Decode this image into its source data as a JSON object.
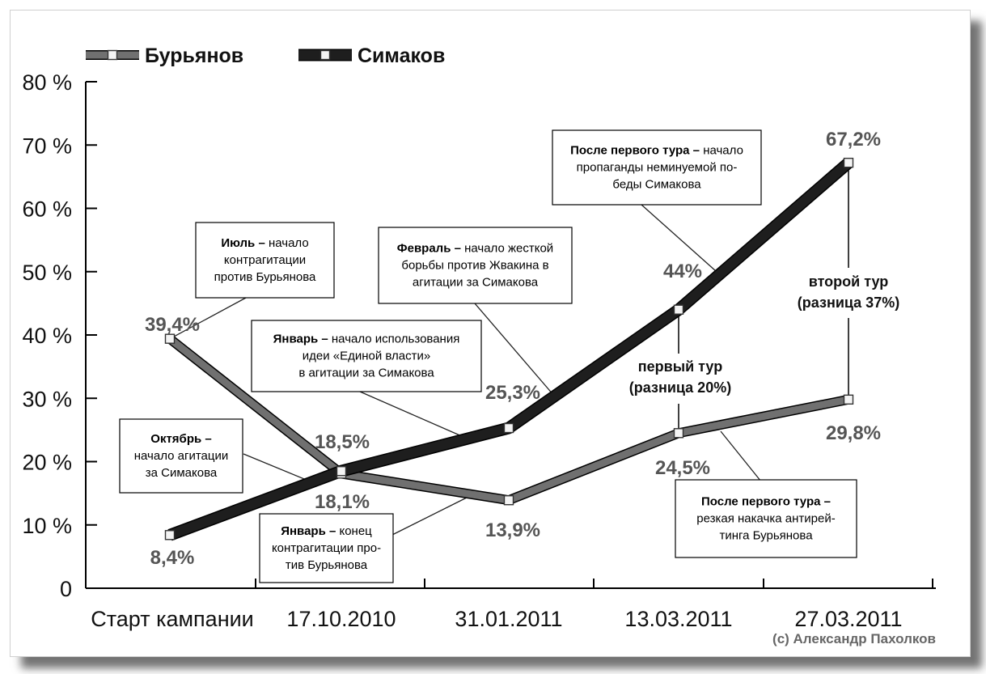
{
  "chart_data": {
    "type": "line",
    "title": "",
    "xlabel": "",
    "ylabel": "",
    "categories": [
      "Старт кампании",
      "17.10.2010",
      "31.01.2011",
      "13.03.2011",
      "27.03.2011"
    ],
    "ylim": [
      0,
      80
    ],
    "yticks": [
      "0",
      "10 %",
      "20 %",
      "30 %",
      "40 %",
      "50 %",
      "60 %",
      "70 %",
      "80 %"
    ],
    "ytick_values": [
      0,
      10,
      20,
      30,
      40,
      50,
      60,
      70,
      80
    ],
    "grid": false,
    "legend_position": "top-left",
    "series": [
      {
        "name": "Бурьянов",
        "color": "#707070",
        "values": [
          39.4,
          18.1,
          13.9,
          24.5,
          29.8
        ],
        "data_labels": [
          "39,4%",
          "18,1%",
          "13,9%",
          "24,5%",
          "29,8%"
        ]
      },
      {
        "name": "Симаков",
        "color": "#1e1e1e",
        "values": [
          8.4,
          18.5,
          25.3,
          44,
          67.2
        ],
        "data_labels": [
          "8,4%",
          "18,5%",
          "25,3%",
          "44%",
          "67,2%"
        ]
      }
    ],
    "round_labels": {
      "first": [
        "первый тур",
        "(разница 20%)"
      ],
      "second": [
        "второй тур",
        "(разница 37%)"
      ]
    },
    "annotations": [
      {
        "id": "july",
        "bold": "Июль –",
        "lines": [
          " начало",
          "контрагитации",
          "против Бурьянова"
        ]
      },
      {
        "id": "feb",
        "bold": "Февраль –",
        "lines": [
          " начало жесткой",
          "борьбы против Жвакина в",
          "агитации за Симакова"
        ]
      },
      {
        "id": "after1s",
        "bold": "После первого тура –",
        "lines": [
          " начало",
          "пропаганды неминуемой по-",
          "беды Симакова"
        ]
      },
      {
        "id": "jan1",
        "bold": "Январь –",
        "lines": [
          " начало использования",
          "идеи «Единой власти»",
          "в агитации за Симакова"
        ]
      },
      {
        "id": "oct",
        "bold": "Октябрь –",
        "lines": [
          "",
          "начало агитации",
          "за Симакова"
        ]
      },
      {
        "id": "jan2",
        "bold": "Январь –",
        "lines": [
          " конец",
          "контрагитации про-",
          "тив Бурьянова"
        ]
      },
      {
        "id": "after1b",
        "bold": "После первого тура –",
        "lines": [
          "",
          "резкая накачка антирей-",
          "тинга Бурьянова"
        ]
      }
    ]
  },
  "credit": "(с) Александр Пахолков"
}
